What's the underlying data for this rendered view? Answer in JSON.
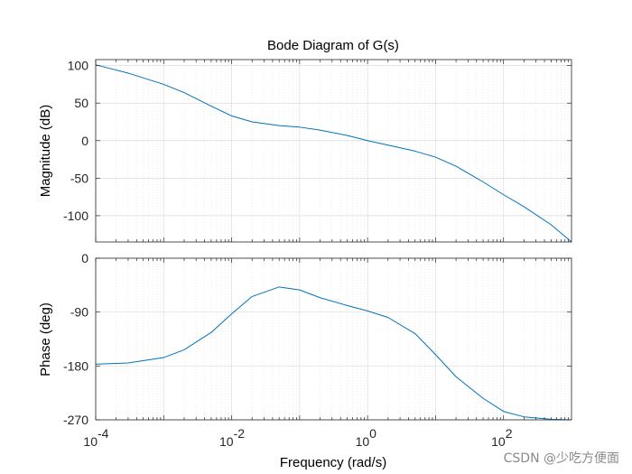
{
  "chart_data": {
    "type": "line",
    "title": "Bode Diagram of G(s)",
    "xlabel": "Frequency  (rad/s)",
    "xscale": "log",
    "xlim": [
      0.0001,
      1000
    ],
    "xticks": [
      {
        "value": 0.0001,
        "base": "10",
        "exp": "-4"
      },
      {
        "value": 0.01,
        "base": "10",
        "exp": "-2"
      },
      {
        "value": 1,
        "base": "10",
        "exp": "0"
      },
      {
        "value": 100,
        "base": "10",
        "exp": "2"
      }
    ],
    "grid": true,
    "line_color": "#0072BD",
    "panels": [
      {
        "name": "magnitude",
        "ylabel": "Magnitude (dB)",
        "ylim": [
          -135,
          108
        ],
        "yticks": [
          100,
          50,
          0,
          -50,
          -100
        ],
        "series": [
          {
            "x": [
              0.0001,
              0.0003,
              0.001,
              0.002,
              0.005,
              0.01,
              0.02,
              0.05,
              0.1,
              0.2,
              0.5,
              1,
              2,
              5,
              10,
              20,
              50,
              100,
              200,
              500,
              1000
            ],
            "y": [
              101,
              90,
              75,
              64,
              46,
              33,
              25,
              20,
              18,
              14,
              7,
              0,
              -6,
              -14,
              -22,
              -34,
              -55,
              -72,
              -88,
              -112,
              -135
            ]
          }
        ]
      },
      {
        "name": "phase",
        "ylabel": "Phase (deg)",
        "ylim": [
          -270,
          0
        ],
        "yticks": [
          0,
          -90,
          -180,
          -270
        ],
        "series": [
          {
            "x": [
              0.0001,
              0.0003,
              0.001,
              0.002,
              0.005,
              0.01,
              0.02,
              0.05,
              0.1,
              0.2,
              0.5,
              1,
              2,
              5,
              10,
              20,
              50,
              100,
              200,
              500,
              1000
            ],
            "y": [
              -177,
              -175,
              -166,
              -153,
              -124,
              -93,
              -64,
              -48,
              -53,
              -66,
              -79,
              -88,
              -99,
              -126,
              -161,
              -198,
              -234,
              -256,
              -265,
              -269,
              -270
            ]
          }
        ]
      }
    ]
  },
  "watermark": "CSDN @少吃方便面"
}
